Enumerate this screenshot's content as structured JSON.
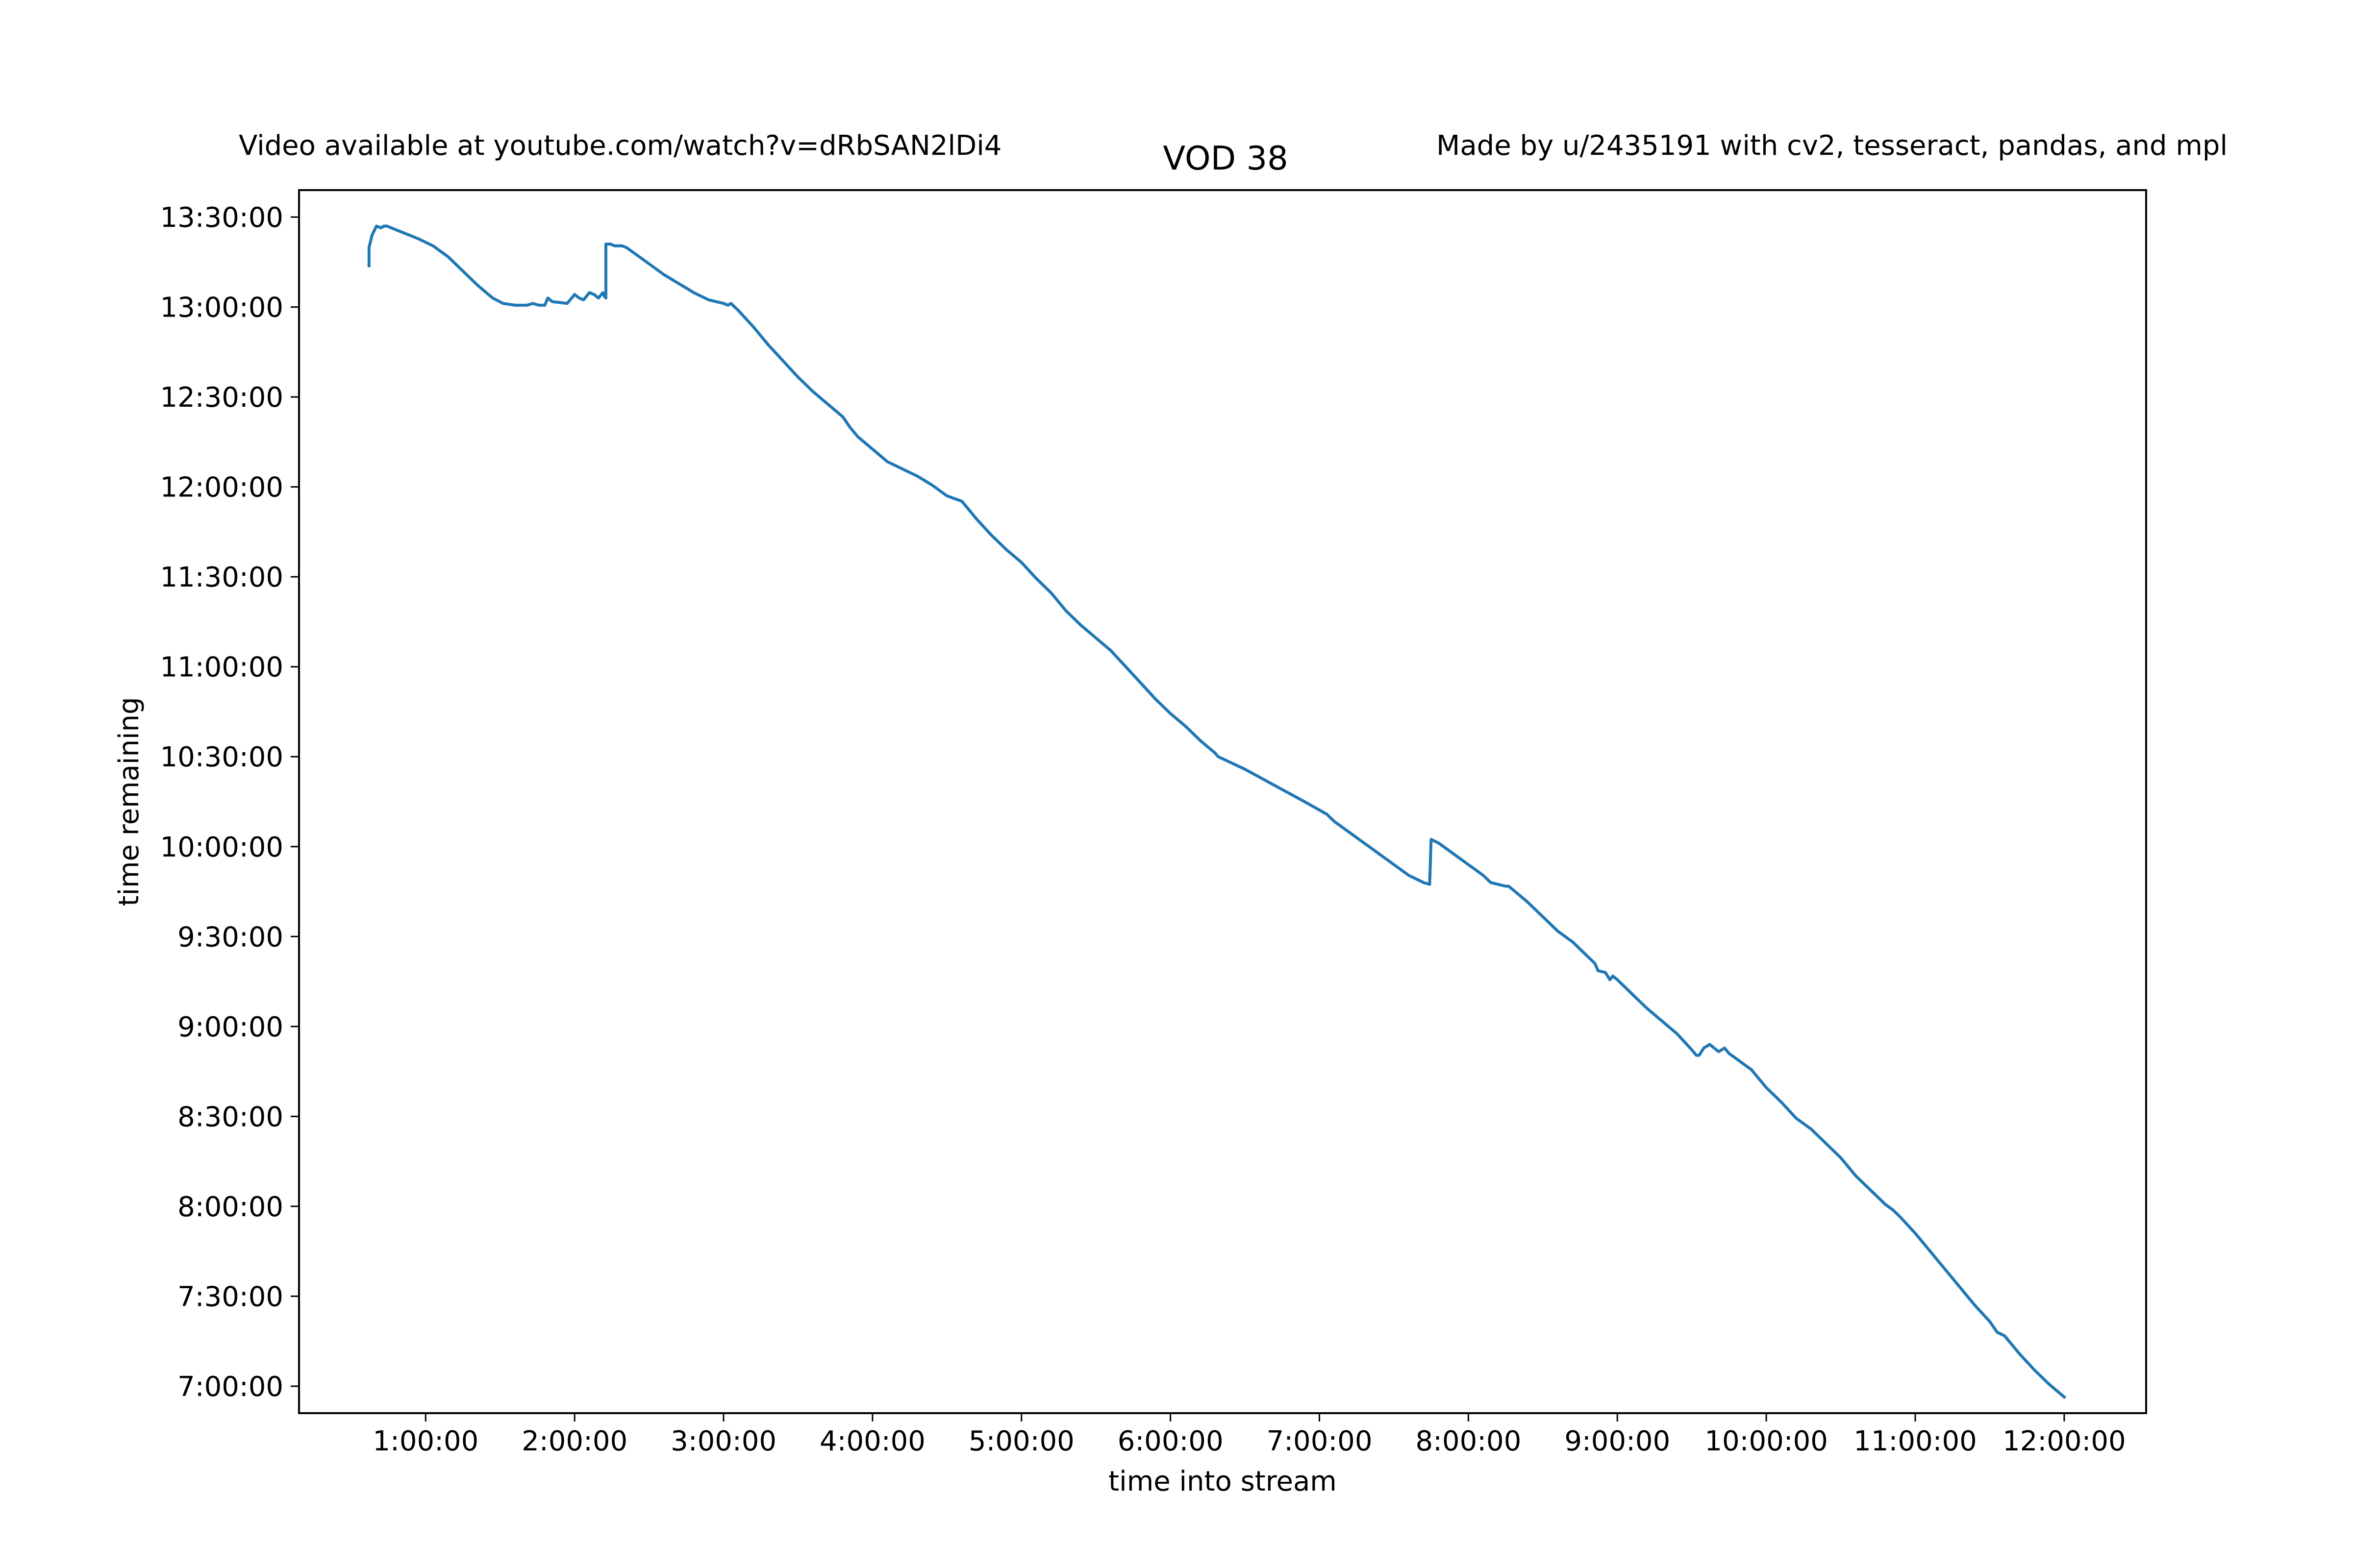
{
  "chart_data": {
    "type": "line",
    "title": "VOD 38",
    "left_note": "Video available at youtube.com/watch?v=dRbSAN2lDi4",
    "right_note": "Made by u/2435191 with cv2, tesseract, pandas, and mpl",
    "xlabel": "time into stream",
    "ylabel": "time remaining",
    "xlim": [
      0.15,
      12.55
    ],
    "ylim": [
      6.85,
      13.65
    ],
    "x_ticks": [
      1,
      2,
      3,
      4,
      5,
      6,
      7,
      8,
      9,
      10,
      11,
      12
    ],
    "x_tick_labels": [
      "1:00:00",
      "2:00:00",
      "3:00:00",
      "4:00:00",
      "5:00:00",
      "6:00:00",
      "7:00:00",
      "8:00:00",
      "9:00:00",
      "10:00:00",
      "11:00:00",
      "12:00:00"
    ],
    "y_ticks": [
      7,
      7.5,
      8,
      8.5,
      9,
      9.5,
      10,
      10.5,
      11,
      11.5,
      12,
      12.5,
      13,
      13.5
    ],
    "y_tick_labels": [
      "7:00:00",
      "7:30:00",
      "8:00:00",
      "8:30:00",
      "9:00:00",
      "9:30:00",
      "10:00:00",
      "10:30:00",
      "11:00:00",
      "11:30:00",
      "12:00:00",
      "12:30:00",
      "13:00:00",
      "13:30:00"
    ],
    "grid": false,
    "colors": {
      "line": "#1f77b4"
    },
    "series": [
      {
        "x": [
          0.62,
          0.62,
          0.64,
          0.67,
          0.7,
          0.72,
          0.74,
          0.77,
          0.8,
          0.86,
          0.95,
          1.05,
          1.15,
          1.25,
          1.35,
          1.45,
          1.52,
          1.6,
          1.68,
          1.72,
          1.76,
          1.8,
          1.82,
          1.85,
          1.95,
          2.0,
          2.03,
          2.06,
          2.1,
          2.13,
          2.16,
          2.19,
          2.2,
          2.21,
          2.21,
          2.24,
          2.27,
          2.29,
          2.32,
          2.35,
          2.4,
          2.5,
          2.6,
          2.7,
          2.8,
          2.9,
          3.0,
          3.03,
          3.05,
          3.1,
          3.2,
          3.3,
          3.4,
          3.5,
          3.6,
          3.7,
          3.8,
          3.85,
          3.9,
          4.0,
          4.1,
          4.2,
          4.3,
          4.4,
          4.5,
          4.6,
          4.7,
          4.8,
          4.9,
          5.0,
          5.1,
          5.2,
          5.3,
          5.4,
          5.5,
          5.6,
          5.7,
          5.8,
          5.9,
          6.0,
          6.1,
          6.2,
          6.3,
          6.32,
          6.5,
          6.7,
          6.9,
          7.05,
          7.1,
          7.2,
          7.3,
          7.4,
          7.5,
          7.6,
          7.7,
          7.74,
          7.75,
          7.8,
          7.9,
          8.0,
          8.1,
          8.15,
          8.2,
          8.25,
          8.27,
          8.3,
          8.4,
          8.5,
          8.6,
          8.7,
          8.8,
          8.85,
          8.87,
          8.92,
          8.95,
          8.97,
          9.0,
          9.1,
          9.2,
          9.3,
          9.4,
          9.5,
          9.53,
          9.55,
          9.58,
          9.62,
          9.65,
          9.68,
          9.72,
          9.75,
          9.8,
          9.9,
          10.0,
          10.1,
          10.2,
          10.3,
          10.4,
          10.5,
          10.6,
          10.7,
          10.8,
          10.85,
          10.9,
          11.0,
          11.1,
          11.2,
          11.3,
          11.4,
          11.5,
          11.55,
          11.6,
          11.7,
          11.8,
          11.9,
          12.0
        ],
        "y": [
          13.23,
          13.33,
          13.4,
          13.45,
          13.44,
          13.45,
          13.45,
          13.44,
          13.43,
          13.41,
          13.38,
          13.34,
          13.28,
          13.2,
          13.12,
          13.05,
          13.02,
          13.01,
          13.01,
          13.02,
          13.01,
          13.01,
          13.05,
          13.03,
          13.02,
          13.07,
          13.05,
          13.04,
          13.08,
          13.07,
          13.05,
          13.08,
          13.06,
          13.05,
          13.35,
          13.35,
          13.34,
          13.34,
          13.34,
          13.33,
          13.3,
          13.24,
          13.18,
          13.13,
          13.08,
          13.04,
          13.02,
          13.01,
          13.02,
          12.98,
          12.89,
          12.79,
          12.7,
          12.61,
          12.53,
          12.46,
          12.39,
          12.33,
          12.28,
          12.21,
          12.14,
          12.1,
          12.06,
          12.01,
          11.95,
          11.92,
          11.82,
          11.73,
          11.65,
          11.58,
          11.49,
          11.41,
          11.31,
          11.23,
          11.16,
          11.09,
          11.0,
          10.91,
          10.82,
          10.74,
          10.67,
          10.59,
          10.52,
          10.5,
          10.43,
          10.34,
          10.25,
          10.18,
          10.14,
          10.08,
          10.02,
          9.96,
          9.9,
          9.84,
          9.8,
          9.79,
          10.04,
          10.02,
          9.96,
          9.9,
          9.84,
          9.8,
          9.79,
          9.78,
          9.78,
          9.76,
          9.69,
          9.61,
          9.53,
          9.47,
          9.39,
          9.35,
          9.31,
          9.3,
          9.26,
          9.28,
          9.26,
          9.18,
          9.1,
          9.03,
          8.96,
          8.87,
          8.84,
          8.84,
          8.88,
          8.9,
          8.88,
          8.86,
          8.88,
          8.85,
          8.82,
          8.76,
          8.66,
          8.58,
          8.49,
          8.43,
          8.35,
          8.27,
          8.17,
          8.09,
          8.01,
          7.98,
          7.94,
          7.85,
          7.75,
          7.65,
          7.55,
          7.45,
          7.36,
          7.3,
          7.28,
          7.18,
          7.09,
          7.01,
          6.94
        ]
      }
    ]
  }
}
